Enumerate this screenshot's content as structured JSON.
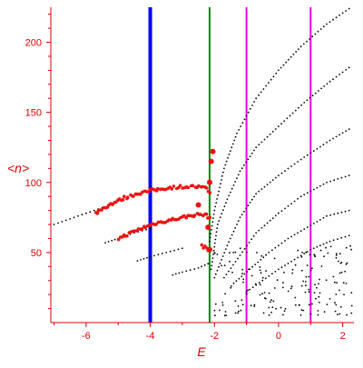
{
  "chart_data": {
    "type": "scatter",
    "xlabel": "E",
    "ylabel": "<n>",
    "xlim": [
      -7.1,
      2.35
    ],
    "ylim": [
      0,
      225
    ],
    "grid": false,
    "xticks": [
      -6,
      -4,
      -2,
      0,
      2
    ],
    "yticks": [
      50,
      100,
      150,
      200
    ],
    "colors": {
      "axis": "#dd0000",
      "black_points": "#000000",
      "red_points": "#ee1111",
      "blue_line": "#0000ff",
      "green_line": "#008800",
      "magenta_line": "#ee00ee"
    },
    "vertical_lines": [
      {
        "x": -4.0,
        "color": "blue"
      },
      {
        "x": -2.15,
        "color": "green"
      },
      {
        "x": -1.0,
        "color": "magenta"
      },
      {
        "x": 1.0,
        "color": "magenta"
      }
    ],
    "black_bands": [
      {
        "points": [
          [
            -7.0,
            70
          ],
          [
            -6.5,
            74
          ],
          [
            -6.0,
            78
          ],
          [
            -5.5,
            82
          ]
        ]
      },
      {
        "points": [
          [
            -5.4,
            57
          ],
          [
            -5.0,
            60
          ],
          [
            -4.5,
            64
          ],
          [
            -4.0,
            67
          ]
        ]
      },
      {
        "points": [
          [
            -4.4,
            44
          ],
          [
            -4.0,
            47
          ],
          [
            -3.5,
            50
          ],
          [
            -3.0,
            53
          ]
        ]
      },
      {
        "points": [
          [
            -3.3,
            34
          ],
          [
            -3.0,
            36
          ],
          [
            -2.5,
            39
          ],
          [
            -2.2,
            42
          ]
        ]
      },
      {
        "points": [
          [
            -2.15,
            58
          ],
          [
            -2.0,
            80
          ],
          [
            -1.7,
            110
          ],
          [
            -1.3,
            135
          ],
          [
            -0.7,
            160
          ],
          [
            0.0,
            180
          ],
          [
            0.7,
            197
          ],
          [
            1.5,
            213
          ],
          [
            2.2,
            224
          ]
        ]
      },
      {
        "points": [
          [
            -2.1,
            38
          ],
          [
            -1.9,
            70
          ],
          [
            -1.6,
            88
          ],
          [
            -1.2,
            108
          ],
          [
            -0.7,
            125
          ],
          [
            0.0,
            140
          ],
          [
            0.8,
            157
          ],
          [
            1.6,
            172
          ],
          [
            2.2,
            182
          ]
        ]
      },
      {
        "points": [
          [
            -2.0,
            32
          ],
          [
            -1.6,
            55
          ],
          [
            -1.2,
            75
          ],
          [
            -0.7,
            92
          ],
          [
            0.0,
            105
          ],
          [
            0.8,
            118
          ],
          [
            1.6,
            130
          ],
          [
            2.2,
            138
          ]
        ]
      },
      {
        "points": [
          [
            -1.7,
            32
          ],
          [
            -1.2,
            48
          ],
          [
            -0.7,
            64
          ],
          [
            0.0,
            78
          ],
          [
            0.7,
            90
          ],
          [
            1.5,
            100
          ],
          [
            2.2,
            105
          ]
        ]
      },
      {
        "points": [
          [
            -1.4,
            28
          ],
          [
            -0.9,
            38
          ],
          [
            -0.3,
            50
          ],
          [
            0.3,
            60
          ],
          [
            0.9,
            68
          ],
          [
            1.5,
            76
          ],
          [
            2.2,
            80
          ]
        ]
      },
      {
        "points": [
          [
            -1.0,
            22
          ],
          [
            -0.5,
            30
          ],
          [
            0.0,
            38
          ],
          [
            0.5,
            45
          ],
          [
            1.0,
            52
          ],
          [
            1.6,
            58
          ],
          [
            2.2,
            62
          ]
        ]
      }
    ],
    "black_scatter_region": {
      "x": [
        -2.0,
        2.3
      ],
      "y": [
        5,
        55
      ]
    },
    "red_bands": [
      {
        "points": [
          [
            -5.7,
            78
          ],
          [
            -5.3,
            84
          ],
          [
            -4.8,
            89
          ],
          [
            -4.4,
            92
          ],
          [
            -4.0,
            94
          ],
          [
            -3.5,
            96
          ],
          [
            -3.0,
            97
          ],
          [
            -2.6,
            97
          ],
          [
            -2.3,
            96
          ],
          [
            -2.15,
            93
          ]
        ]
      },
      {
        "points": [
          [
            -5.0,
            60
          ],
          [
            -4.6,
            64
          ],
          [
            -4.2,
            68
          ],
          [
            -3.8,
            71
          ],
          [
            -3.4,
            73
          ],
          [
            -3.0,
            75
          ],
          [
            -2.6,
            77
          ],
          [
            -2.3,
            77
          ],
          [
            -2.15,
            75
          ]
        ]
      },
      {
        "points": [
          [
            -2.4,
            55
          ],
          [
            -2.2,
            52
          ]
        ]
      }
    ],
    "red_highlight_points": [
      [
        -2.15,
        100
      ],
      [
        -2.15,
        52
      ],
      [
        -2.2,
        68
      ],
      [
        -2.5,
        84
      ],
      [
        -2.1,
        115
      ],
      [
        -2.05,
        122
      ]
    ]
  }
}
